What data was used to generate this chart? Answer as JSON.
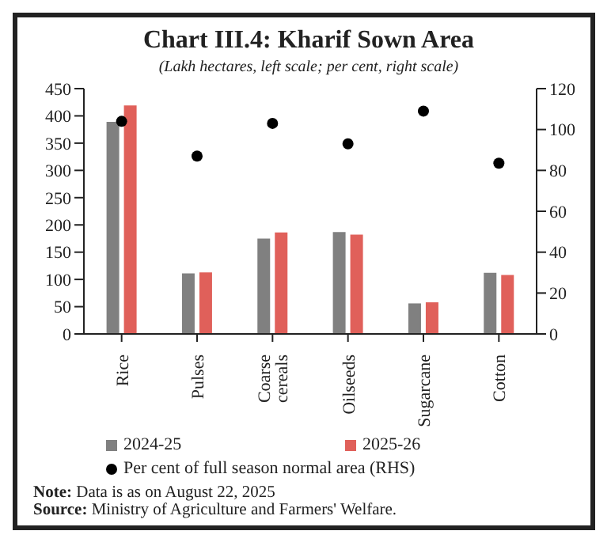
{
  "chart_data": {
    "type": "bar",
    "title": "Chart III.4: Kharif Sown Area",
    "subtitle": "(Lakh hectares, left scale; per cent, right scale)",
    "categories": [
      "Rice",
      "Pulses",
      "Coarse cereals",
      "Oilseeds",
      "Sugarcane",
      "Cotton"
    ],
    "series": [
      {
        "name": "2024-25",
        "color": "#808080",
        "values": [
          389,
          111,
          175,
          187,
          56,
          112
        ]
      },
      {
        "name": "2025-26",
        "color": "#e0605a",
        "values": [
          419,
          113,
          186,
          182,
          58,
          108
        ]
      },
      {
        "name": "Per cent of full season normal area (RHS)",
        "type": "scatter",
        "axis": "y2",
        "color": "#000000",
        "values": [
          104,
          87,
          103,
          93,
          109,
          83.5
        ]
      }
    ],
    "ylim": [
      0,
      450
    ],
    "yticks": [
      0,
      50,
      100,
      150,
      200,
      250,
      300,
      350,
      400,
      450
    ],
    "y2lim": [
      0,
      120
    ],
    "y2ticks": [
      0,
      20,
      40,
      60,
      80,
      100,
      120
    ],
    "marker": "circle",
    "grid": false,
    "legend": "bottom",
    "annotations": [
      "Note: Data is as on August 22, 2025",
      "Source: Ministry of Agriculture and Farmers' Welfare."
    ]
  }
}
